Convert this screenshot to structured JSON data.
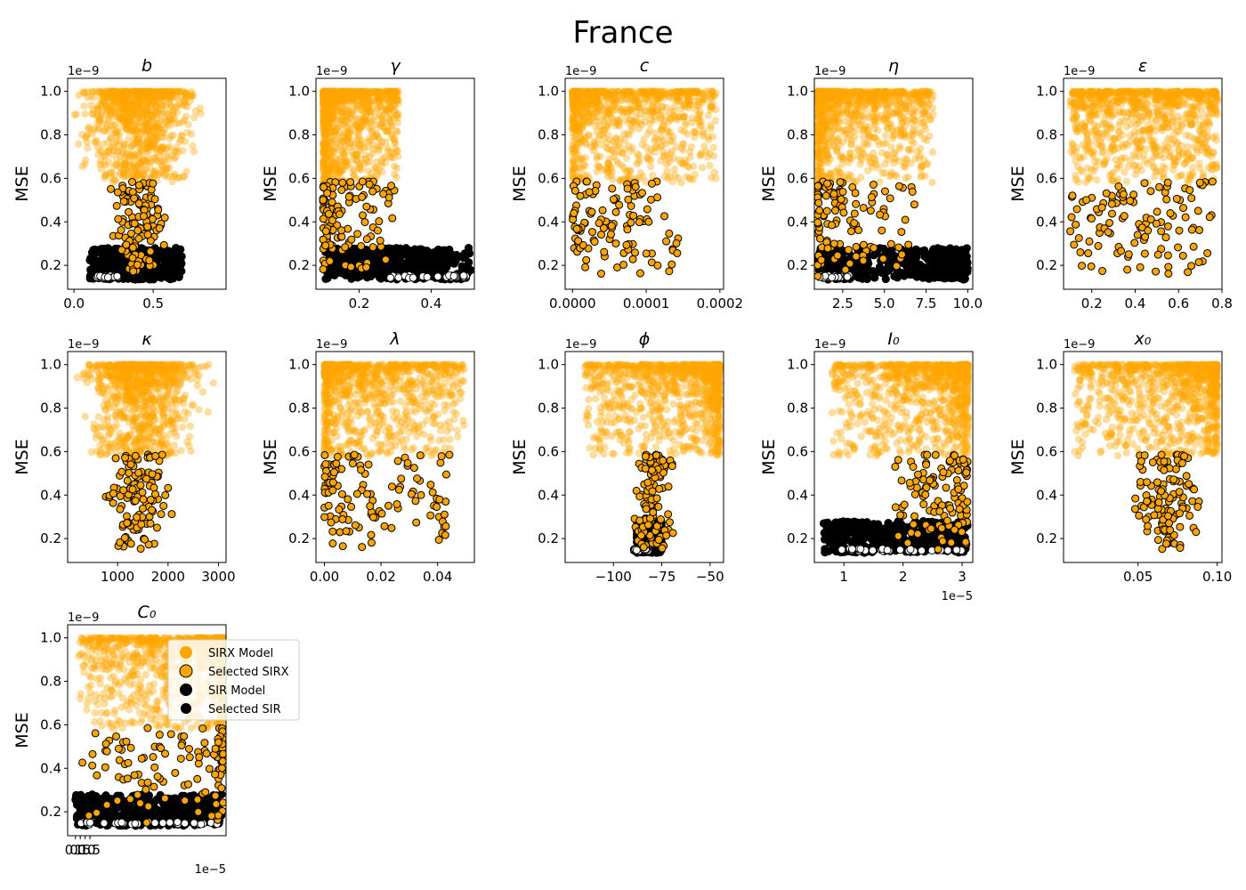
{
  "chart_data": {
    "type": "scatter",
    "title": "France",
    "colors": {
      "sirx": "#ffa500",
      "sir": "#000000",
      "selected_sir_face": "#ffffff"
    },
    "legend": {
      "placement": "overlapping last panel, right",
      "entries": [
        "SIRX Model",
        "Selected SIRX",
        "SIR Model",
        "Selected SIR"
      ]
    },
    "ylabel": "MSE",
    "y_offset": "1e−9",
    "ylim": [
      0.09,
      1.06
    ],
    "yticks": [
      0.2,
      0.4,
      0.6,
      0.8,
      1.0
    ],
    "yticklabels": [
      "0.2",
      "0.4",
      "0.6",
      "0.8",
      "1.0"
    ],
    "panels": [
      {
        "id": "b",
        "title": "b",
        "xlim": [
          -0.04,
          0.96
        ],
        "xticks": [
          0,
          0.5
        ],
        "xticklabels": [
          "0.0",
          "0.5"
        ],
        "x_offset": "",
        "sirx": {
          "x_range": [
            0.0,
            0.92
          ],
          "mode": "center",
          "center": 0.4,
          "spread": 0.5
        },
        "sel_sirx": {
          "x_range": [
            0.05,
            0.72
          ],
          "mode": "center",
          "center": 0.4
        },
        "sir": {
          "x_range": [
            0.1,
            0.68
          ],
          "mode": "uniform"
        },
        "sel_sir": {
          "x_range": [
            0.14,
            0.28
          ]
        }
      },
      {
        "id": "gamma",
        "title": "γ",
        "xlim": [
          0.08,
          0.52
        ],
        "xticks": [
          0.2,
          0.4
        ],
        "xticklabels": [
          "0.2",
          "0.4"
        ],
        "x_offset": "",
        "sirx": {
          "x_range": [
            0.1,
            0.31
          ],
          "mode": "left"
        },
        "sel_sirx": {
          "x_range": [
            0.1,
            0.3
          ],
          "mode": "left"
        },
        "sir": {
          "x_range": [
            0.1,
            0.51
          ],
          "mode": "uniform"
        },
        "sel_sir": {
          "x_range": [
            0.27,
            0.5
          ]
        }
      },
      {
        "id": "c",
        "title": "c",
        "xlim": [
          -1e-05,
          0.000205
        ],
        "xticks": [
          0,
          0.0001,
          0.0002
        ],
        "xticklabels": [
          "0.0000",
          "0.0001",
          "0.0002"
        ],
        "x_offset": "",
        "sirx": {
          "x_range": [
            0.0,
            0.000195
          ],
          "mode": "left"
        },
        "sel_sirx": {
          "x_range": [
            0.0,
            0.000148
          ],
          "mode": "left"
        }
      },
      {
        "id": "eta",
        "title": "η",
        "xlim": [
          0.8,
          10.3
        ],
        "xticks": [
          2.5,
          5.0,
          7.5,
          10.0
        ],
        "xticklabels": [
          "2.5",
          "5.0",
          "7.5",
          "10.0"
        ],
        "x_offset": "",
        "sirx": {
          "x_range": [
            1.0,
            8.0
          ],
          "mode": "left"
        },
        "sel_sirx": {
          "x_range": [
            1.0,
            6.8
          ],
          "mode": "left"
        },
        "sir": {
          "x_range": [
            1.0,
            10.0
          ],
          "mode": "two",
          "split": 4.0
        },
        "sel_sir": {
          "x_range": [
            1.1,
            2.9
          ]
        }
      },
      {
        "id": "epsilon",
        "title": "ε",
        "xlim": [
          0.07,
          0.8
        ],
        "xticks": [
          0.2,
          0.4,
          0.6,
          0.8
        ],
        "xticklabels": [
          "0.2",
          "0.4",
          "0.6",
          "0.8"
        ],
        "x_offset": "",
        "sirx": {
          "x_range": [
            0.1,
            0.78
          ],
          "mode": "uniform"
        },
        "sel_sirx": {
          "x_range": [
            0.1,
            0.76
          ],
          "mode": "uniform"
        }
      },
      {
        "id": "kappa",
        "title": "κ",
        "xlim": [
          10,
          3150
        ],
        "xticks": [
          1000,
          2000,
          3000
        ],
        "xticklabels": [
          "1000",
          "2000",
          "3000"
        ],
        "x_offset": "",
        "sirx": {
          "x_range": [
            100,
            3000
          ],
          "mode": "center",
          "center": 1500,
          "spread": 0.5
        },
        "sel_sirx": {
          "x_range": [
            100,
            2500
          ],
          "mode": "center",
          "center": 1400
        }
      },
      {
        "id": "lambda",
        "title": "λ",
        "xlim": [
          -0.003,
          0.053
        ],
        "xticks": [
          0,
          0.02,
          0.04
        ],
        "xticklabels": [
          "0.00",
          "0.02",
          "0.04"
        ],
        "x_offset": "",
        "sirx": {
          "x_range": [
            0.0,
            0.05
          ],
          "mode": "left"
        },
        "sel_sirx": {
          "x_range": [
            0.0,
            0.045
          ],
          "mode": "left"
        }
      },
      {
        "id": "phi",
        "title": "ϕ",
        "xlim": [
          -125,
          -43
        ],
        "xticks": [
          -100,
          -75,
          -50
        ],
        "xticklabels": [
          "−100",
          "−75",
          "−50"
        ],
        "x_offset": "",
        "sirx": {
          "x_range": [
            -115,
            -45
          ],
          "mode": "right"
        },
        "sel_sirx": {
          "x_range": [
            -100,
            -48
          ],
          "mode": "center",
          "center": -80,
          "spread": 0.25
        },
        "sir": {
          "x_range": [
            -88,
            -75
          ],
          "mode": "uniform"
        },
        "sel_sir": {
          "x_range": [
            -90,
            -82
          ]
        }
      },
      {
        "id": "I0",
        "title": "I₀",
        "xlim": [
          5e-06,
          3.18e-05
        ],
        "xticks": [
          1e-05,
          2e-05,
          3e-05
        ],
        "xticklabels": [
          "1",
          "2",
          "3"
        ],
        "x_offset": "1e−5",
        "sirx": {
          "x_range": [
            8e-06,
            3.1e-05
          ],
          "mode": "right"
        },
        "sel_sirx": {
          "x_range": [
            1.85e-05,
            3.09e-05
          ],
          "mode": "right"
        },
        "sir": {
          "x_range": [
            6.5e-06,
            3.1e-05
          ],
          "mode": "uniform"
        },
        "sel_sir": {
          "x_range": [
            9.5e-06,
            3.1e-05
          ]
        }
      },
      {
        "id": "x0",
        "title": "x₀",
        "xlim": [
          0.003,
          0.103
        ],
        "xticks": [
          0.05,
          0.1
        ],
        "xticklabels": [
          "0.05",
          "0.10"
        ],
        "x_offset": "",
        "sirx": {
          "x_range": [
            0.01,
            0.1
          ],
          "mode": "right"
        },
        "sel_sirx": {
          "x_range": [
            0.02,
            0.1
          ],
          "mode": "center",
          "center": 0.068
        }
      },
      {
        "id": "C0",
        "title": "C₀",
        "xlim": [
          -8e-06,
          0.000155
        ],
        "xticks": [
          0,
          5e-06,
          1e-05,
          1.5e-05
        ],
        "xticklabels": [
          "0.0",
          "0.5",
          "1.0",
          "1.5"
        ],
        "x_offset": "1e−5",
        "sirx": {
          "x_range": [
            3e-06,
            0.000153
          ],
          "mode": "right"
        },
        "sel_sirx": {
          "x_range": [
            5.5e-06,
            0.000152
          ],
          "mode": "right"
        },
        "sir": {
          "x_range": [
            0.0,
            0.000152
          ],
          "mode": "uniform"
        },
        "sel_sir": {
          "x_range": [
            3.5e-06,
            0.000152
          ]
        }
      }
    ]
  }
}
